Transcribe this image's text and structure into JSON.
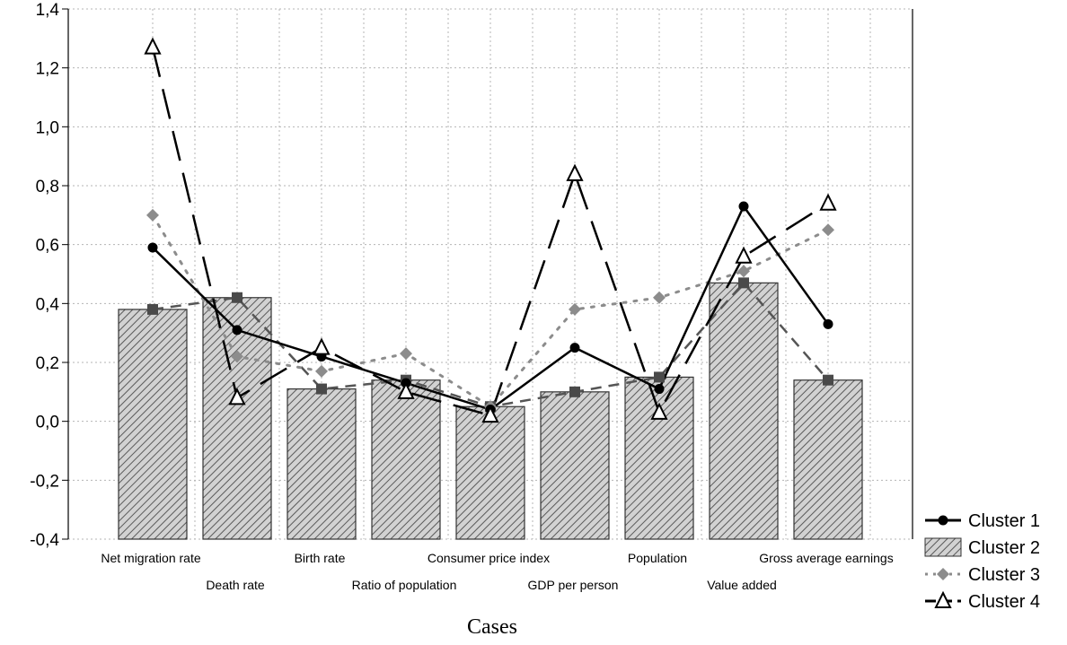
{
  "chart_data": {
    "type": "bar",
    "xlabel": "Cases",
    "ylabel": "",
    "ylim": [
      -0.4,
      1.4
    ],
    "yticks": [
      "-0,4",
      "-0,2",
      "0,0",
      "0,2",
      "0,4",
      "0,6",
      "0,8",
      "1,0",
      "1,2",
      "1,4"
    ],
    "ytick_values": [
      -0.4,
      -0.2,
      0.0,
      0.2,
      0.4,
      0.6,
      0.8,
      1.0,
      1.2,
      1.4
    ],
    "grid": true,
    "legend_position": "bottom-right",
    "categories": [
      "Net migration rate",
      "Death rate",
      "Birth rate",
      "Ratio of population",
      "Consumer price index",
      "GDP per person",
      "Population",
      "Value added",
      "Gross average earnings"
    ],
    "series": [
      {
        "name": "Cluster 1",
        "style": "line",
        "marker": "circle",
        "dash": "solid",
        "values": [
          0.59,
          0.31,
          0.22,
          0.13,
          0.04,
          0.25,
          0.11,
          0.73,
          0.33
        ]
      },
      {
        "name": "Cluster 2",
        "style": "bar",
        "marker": "square",
        "dash": "dashed",
        "values": [
          0.38,
          0.42,
          0.11,
          0.14,
          0.05,
          0.1,
          0.15,
          0.47,
          0.14
        ]
      },
      {
        "name": "Cluster 3",
        "style": "line",
        "marker": "diamond",
        "dash": "dotted",
        "values": [
          0.7,
          0.22,
          0.17,
          0.23,
          0.05,
          0.38,
          0.42,
          0.51,
          0.65
        ]
      },
      {
        "name": "Cluster 4",
        "style": "line",
        "marker": "triangle",
        "dash": "long-dash",
        "values": [
          1.27,
          0.08,
          0.25,
          0.1,
          0.02,
          0.84,
          0.03,
          0.56,
          0.74
        ]
      }
    ]
  },
  "colors": {
    "bar_fill": "#c8c8c8",
    "bar_hatch": "#555555",
    "cluster1": "#000000",
    "cluster2_marker": "#4a4a4a",
    "cluster3_marker": "#8c8c8c",
    "cluster4": "#000000",
    "grid": "#b4b4b4"
  }
}
